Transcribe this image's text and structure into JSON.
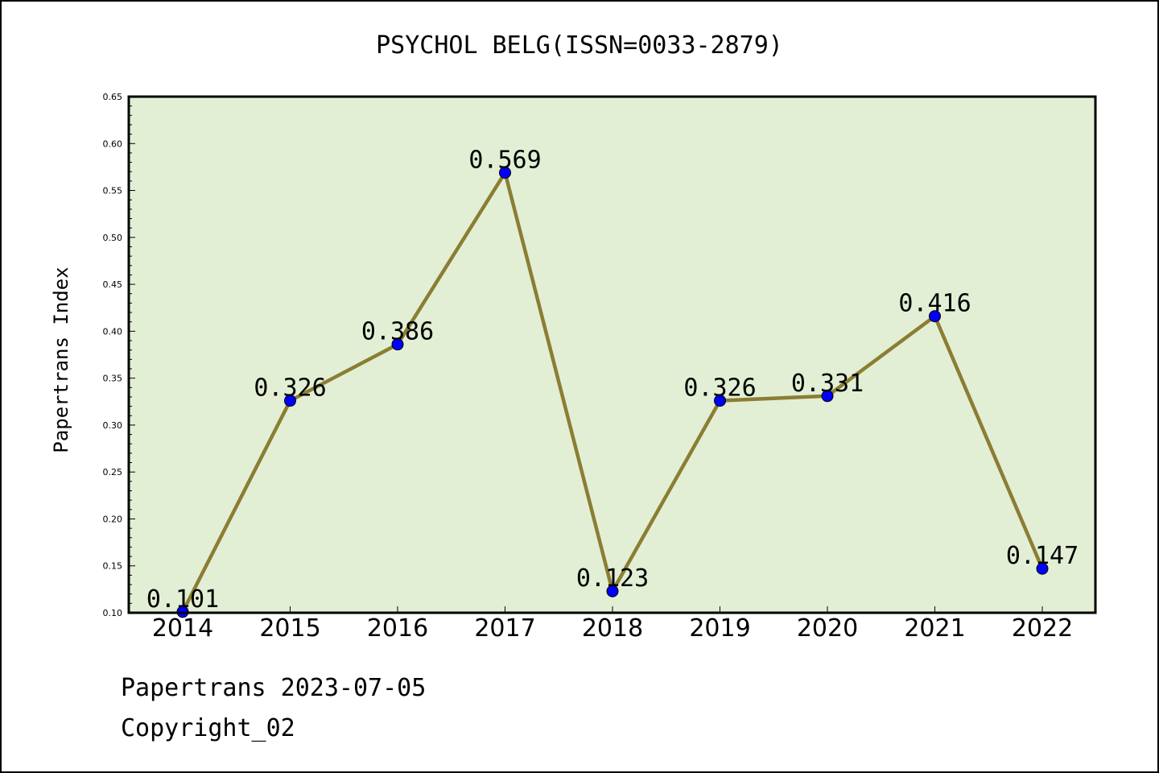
{
  "chart_data": {
    "type": "line",
    "title": "PSYCHOL BELG(ISSN=0033-2879)",
    "ylabel": "Papertrans Index",
    "xlabel": "",
    "categories": [
      "2014",
      "2015",
      "2016",
      "2017",
      "2018",
      "2019",
      "2020",
      "2021",
      "2022"
    ],
    "series": [
      {
        "values": [
          0.101,
          0.326,
          0.386,
          0.569,
          0.123,
          0.326,
          0.331,
          0.416,
          0.147
        ],
        "labels": [
          "0.101",
          "0.326",
          "0.386",
          "0.569",
          "0.123",
          "0.326",
          "0.331",
          "0.416",
          "0.147"
        ]
      }
    ],
    "ylim": [
      0.1,
      0.65
    ],
    "yticks": [
      "0.10",
      "0.15",
      "0.20",
      "0.25",
      "0.30",
      "0.35",
      "0.40",
      "0.45",
      "0.50",
      "0.55",
      "0.60",
      "0.65"
    ],
    "grid": false,
    "legend": "none"
  },
  "footer": {
    "line1": "Papertrans 2023-07-05",
    "line2": "Copyright_02"
  },
  "colors": {
    "plot_background": "#e2efd5",
    "line": "#8b7d33",
    "marker": "#0000ff",
    "text": "#000000"
  }
}
